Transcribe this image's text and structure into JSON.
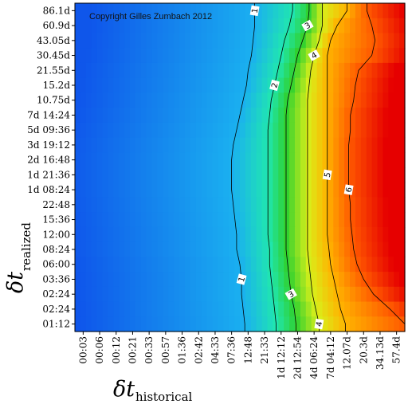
{
  "chart_data": {
    "type": "heatmap",
    "copyright": "Copyright Gilles Zumbach 2012",
    "xlabel": {
      "main": "δt",
      "sub": "historical"
    },
    "ylabel": {
      "main": "δt",
      "sub": "realized"
    },
    "x_ticks": [
      "00:03",
      "00:06",
      "00:12",
      "00:21",
      "00:33",
      "00:57",
      "01:36",
      "02:42",
      "04:33",
      "07:36",
      "12:48",
      "21:33",
      "1d 12:12",
      "2d 12:54",
      "4d 06:24",
      "7d 04:12",
      "12.07d",
      "20.3d",
      "34.13d",
      "57.4d"
    ],
    "y_ticks": [
      "86.1d",
      "60.9d",
      "43.05d",
      "30.45d",
      "21.55d",
      "15.2d",
      "10.75d",
      "7d 14:24",
      "5d 09:36",
      "3d 19:12",
      "2d 16:48",
      "1d 21:36",
      "1d 08:24",
      "22:48",
      "15:36",
      "12:00",
      "08:24",
      "06:00",
      "03:36",
      "02:24",
      "02:24",
      "01:12"
    ],
    "contour_labels": [
      "1",
      "2",
      "3",
      "4",
      "5",
      "6"
    ],
    "colorscale": [
      "#0a2fe8",
      "#1ab0f0",
      "#20e6b0",
      "#2fd12f",
      "#d9ef1a",
      "#ffb300",
      "#ff5a00",
      "#e60000"
    ],
    "z_range": [
      0,
      7
    ],
    "rows": [
      {
        "y": "86.1d",
        "x_at_level": [
          10.4,
          12.7,
          13.7,
          14.5,
          16.0,
          17.2
        ]
      },
      {
        "y": "60.9d",
        "x_at_level": [
          10.4,
          12.5,
          13.6,
          14.5,
          15.4,
          17.5
        ]
      },
      {
        "y": "43.05d",
        "x_at_level": [
          10.3,
          12.2,
          13.3,
          14.3,
          15.0,
          17.7
        ]
      },
      {
        "y": "30.45d",
        "x_at_level": [
          10.2,
          12.0,
          13.0,
          14.0,
          14.8,
          17.5
        ]
      },
      {
        "y": "21.55d",
        "x_at_level": [
          10.0,
          11.8,
          12.8,
          13.8,
          14.8,
          16.7
        ]
      },
      {
        "y": "15.2d",
        "x_at_level": [
          9.9,
          11.6,
          12.6,
          13.7,
          14.8,
          16.5
        ]
      },
      {
        "y": "10.75d",
        "x_at_level": [
          9.7,
          11.4,
          12.4,
          13.6,
          14.8,
          16.4
        ]
      },
      {
        "y": "7d 14:24",
        "x_at_level": [
          9.5,
          11.3,
          12.3,
          13.6,
          14.8,
          16.2
        ]
      },
      {
        "y": "5d 09:36",
        "x_at_level": [
          9.3,
          11.2,
          12.3,
          13.6,
          14.8,
          16.2
        ]
      },
      {
        "y": "3d 19:12",
        "x_at_level": [
          9.1,
          11.2,
          12.3,
          13.6,
          14.8,
          16.1
        ]
      },
      {
        "y": "2d 16:48",
        "x_at_level": [
          9.0,
          11.2,
          12.3,
          13.6,
          14.8,
          16.1
        ]
      },
      {
        "y": "1d 21:36",
        "x_at_level": [
          9.0,
          11.2,
          12.3,
          13.6,
          14.8,
          16.1
        ]
      },
      {
        "y": "1d 08:24",
        "x_at_level": [
          9.0,
          11.2,
          12.3,
          13.6,
          14.8,
          16.1
        ]
      },
      {
        "y": "22:48",
        "x_at_level": [
          9.1,
          11.2,
          12.3,
          13.6,
          14.8,
          16.2
        ]
      },
      {
        "y": "15:36",
        "x_at_level": [
          9.2,
          11.2,
          12.3,
          13.6,
          14.8,
          16.2
        ]
      },
      {
        "y": "12:00",
        "x_at_level": [
          9.3,
          11.2,
          12.3,
          13.6,
          14.8,
          16.3
        ]
      },
      {
        "y": "08:24",
        "x_at_level": [
          9.3,
          11.3,
          12.3,
          13.6,
          14.9,
          16.4
        ]
      },
      {
        "y": "06:00",
        "x_at_level": [
          9.5,
          11.3,
          12.4,
          13.7,
          15.0,
          16.6
        ]
      },
      {
        "y": "03:36",
        "x_at_level": [
          9.6,
          11.4,
          12.5,
          13.8,
          15.2,
          17.0
        ]
      },
      {
        "y": "02:24",
        "x_at_level": [
          9.6,
          11.5,
          12.6,
          13.9,
          15.4,
          17.6
        ]
      },
      {
        "y": "02:24",
        "x_at_level": [
          9.7,
          11.6,
          12.8,
          14.1,
          15.6,
          18.6
        ]
      },
      {
        "y": "01:12",
        "x_at_level": [
          9.8,
          11.7,
          12.9,
          14.3,
          15.9,
          19.5
        ]
      }
    ]
  }
}
